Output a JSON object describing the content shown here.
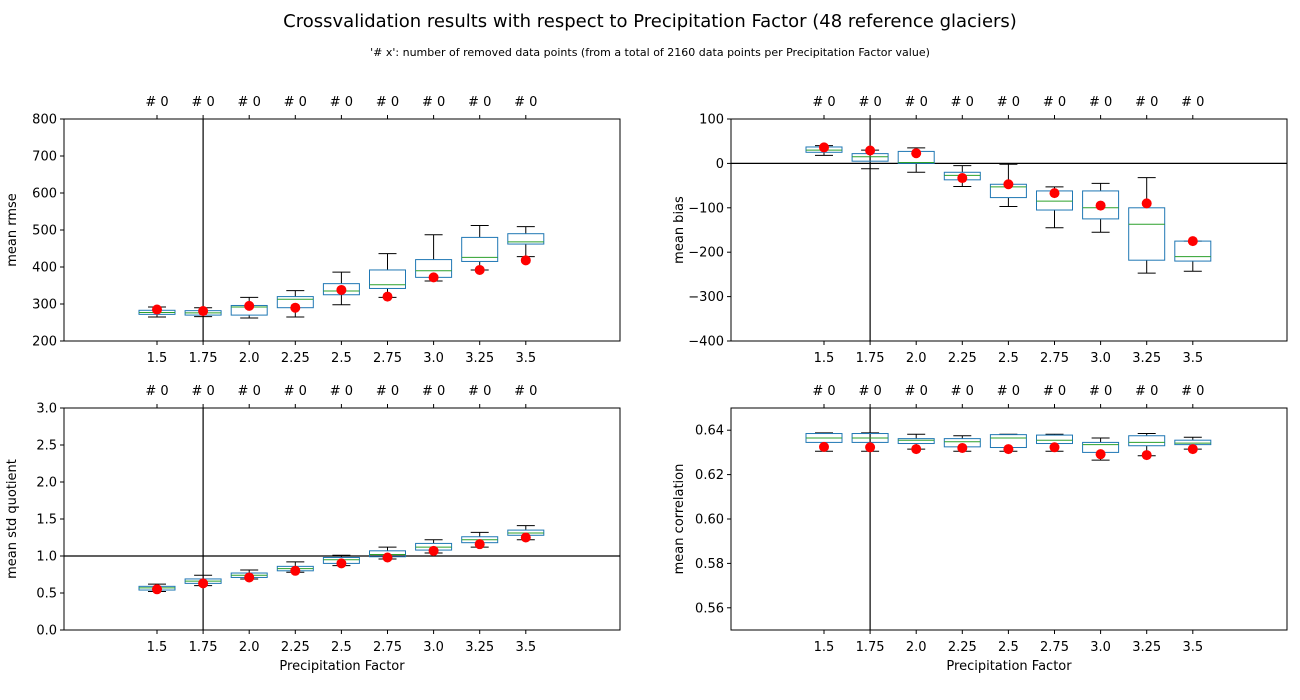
{
  "title": "Crossvalidation results with respect to Precipitation Factor  (48 reference glaciers)",
  "subtitle": "'# x': number of removed data points (from a total of 2160 data points per Precipitation Factor value)",
  "colors": {
    "box": "#1f77b4",
    "median": "#2ca02c",
    "mean_marker": "#ff0000",
    "reference_line": "#000000"
  },
  "chart_data": [
    {
      "type": "box",
      "xlabel": "",
      "ylabel": "mean rmse",
      "ylim": [
        200,
        800
      ],
      "yticks": [
        "200",
        "300",
        "400",
        "500",
        "600",
        "700",
        "800"
      ],
      "categories": [
        "1.5",
        "1.75",
        "2.0",
        "2.25",
        "2.5",
        "2.75",
        "3.0",
        "3.25",
        "3.5"
      ],
      "top_labels": [
        "# 0",
        "# 0",
        "# 0",
        "# 0",
        "# 0",
        "# 0",
        "# 0",
        "# 0",
        "# 0"
      ],
      "reference_x": "1.75",
      "reference_y": null,
      "boxes": [
        {
          "whislo": 265,
          "q1": 272,
          "med": 277,
          "q3": 283,
          "whishi": 292,
          "mean": 285
        },
        {
          "whislo": 266,
          "q1": 270,
          "med": 276,
          "q3": 282,
          "whishi": 290,
          "mean": 281
        },
        {
          "whislo": 262,
          "q1": 270,
          "med": 292,
          "q3": 296,
          "whishi": 318,
          "mean": 295
        },
        {
          "whislo": 265,
          "q1": 290,
          "med": 313,
          "q3": 320,
          "whishi": 336,
          "mean": 290
        },
        {
          "whislo": 298,
          "q1": 325,
          "med": 335,
          "q3": 355,
          "whishi": 386,
          "mean": 338
        },
        {
          "whislo": 318,
          "q1": 342,
          "med": 352,
          "q3": 392,
          "whishi": 436,
          "mean": 320
        },
        {
          "whislo": 362,
          "q1": 372,
          "med": 390,
          "q3": 420,
          "whishi": 487,
          "mean": 372
        },
        {
          "whislo": 392,
          "q1": 415,
          "med": 426,
          "q3": 480,
          "whishi": 512,
          "mean": 392
        },
        {
          "whislo": 428,
          "q1": 462,
          "med": 468,
          "q3": 490,
          "whishi": 509,
          "mean": 418
        }
      ]
    },
    {
      "type": "box",
      "xlabel": "",
      "ylabel": "mean bias",
      "ylim": [
        -400,
        100
      ],
      "yticks": [
        "−400",
        "−300",
        "−200",
        "−100",
        "0",
        "100"
      ],
      "categories": [
        "1.5",
        "1.75",
        "2.0",
        "2.25",
        "2.5",
        "2.75",
        "3.0",
        "3.25",
        "3.5"
      ],
      "top_labels": [
        "# 0",
        "# 0",
        "# 0",
        "# 0",
        "# 0",
        "# 0",
        "# 0",
        "# 0",
        "# 0"
      ],
      "reference_x": "1.75",
      "reference_y": 0,
      "boxes": [
        {
          "whislo": 18,
          "q1": 25,
          "med": 30,
          "q3": 37,
          "whishi": 40,
          "mean": 36
        },
        {
          "whislo": -12,
          "q1": 5,
          "med": 15,
          "q3": 22,
          "whishi": 30,
          "mean": 29
        },
        {
          "whislo": -20,
          "q1": 0,
          "med": 2,
          "q3": 27,
          "whishi": 35,
          "mean": 23
        },
        {
          "whislo": -52,
          "q1": -37,
          "med": -27,
          "q3": -20,
          "whishi": -5,
          "mean": -33
        },
        {
          "whislo": -97,
          "q1": -77,
          "med": -53,
          "q3": -47,
          "whishi": -2,
          "mean": -47
        },
        {
          "whislo": -145,
          "q1": -105,
          "med": -85,
          "q3": -62,
          "whishi": -53,
          "mean": -67
        },
        {
          "whislo": -155,
          "q1": -125,
          "med": -100,
          "q3": -62,
          "whishi": -45,
          "mean": -95
        },
        {
          "whislo": -247,
          "q1": -218,
          "med": -137,
          "q3": -100,
          "whishi": -32,
          "mean": -90
        },
        {
          "whislo": -243,
          "q1": -220,
          "med": -210,
          "q3": -175,
          "whishi": -175,
          "mean": -175
        }
      ]
    },
    {
      "type": "box",
      "xlabel": "Precipitation Factor",
      "ylabel": "mean std quotient",
      "ylim": [
        0.0,
        3.0
      ],
      "yticks": [
        "0.0",
        "0.5",
        "1.0",
        "1.5",
        "2.0",
        "2.5",
        "3.0"
      ],
      "categories": [
        "1.5",
        "1.75",
        "2.0",
        "2.25",
        "2.5",
        "2.75",
        "3.0",
        "3.25",
        "3.5"
      ],
      "top_labels": [
        "# 0",
        "# 0",
        "# 0",
        "# 0",
        "# 0",
        "# 0",
        "# 0",
        "# 0",
        "# 0"
      ],
      "reference_x": "1.75",
      "reference_y": 1.0,
      "boxes": [
        {
          "whislo": 0.52,
          "q1": 0.54,
          "med": 0.57,
          "q3": 0.59,
          "whishi": 0.62,
          "mean": 0.55
        },
        {
          "whislo": 0.6,
          "q1": 0.63,
          "med": 0.66,
          "q3": 0.69,
          "whishi": 0.74,
          "mean": 0.63
        },
        {
          "whislo": 0.69,
          "q1": 0.71,
          "med": 0.74,
          "q3": 0.77,
          "whishi": 0.81,
          "mean": 0.71
        },
        {
          "whislo": 0.78,
          "q1": 0.8,
          "med": 0.83,
          "q3": 0.86,
          "whishi": 0.92,
          "mean": 0.8
        },
        {
          "whislo": 0.87,
          "q1": 0.9,
          "med": 0.95,
          "q3": 0.98,
          "whishi": 1.01,
          "mean": 0.9
        },
        {
          "whislo": 0.96,
          "q1": 0.99,
          "med": 1.02,
          "q3": 1.07,
          "whishi": 1.12,
          "mean": 0.98
        },
        {
          "whislo": 1.04,
          "q1": 1.08,
          "med": 1.12,
          "q3": 1.17,
          "whishi": 1.22,
          "mean": 1.07
        },
        {
          "whislo": 1.12,
          "q1": 1.18,
          "med": 1.22,
          "q3": 1.26,
          "whishi": 1.32,
          "mean": 1.16
        },
        {
          "whislo": 1.22,
          "q1": 1.28,
          "med": 1.31,
          "q3": 1.35,
          "whishi": 1.41,
          "mean": 1.25
        }
      ]
    },
    {
      "type": "box",
      "xlabel": "Precipitation Factor",
      "ylabel": "mean correlation",
      "ylim": [
        0.55,
        0.65
      ],
      "yticks": [
        "0.56",
        "0.58",
        "0.60",
        "0.62",
        "0.64"
      ],
      "ytick_values": [
        0.56,
        0.58,
        0.6,
        0.62,
        0.64
      ],
      "categories": [
        "1.5",
        "1.75",
        "2.0",
        "2.25",
        "2.5",
        "2.75",
        "3.0",
        "3.25",
        "3.5"
      ],
      "top_labels": [
        "# 0",
        "# 0",
        "# 0",
        "# 0",
        "# 0",
        "# 0",
        "# 0",
        "# 0",
        "# 0"
      ],
      "reference_x": "1.75",
      "reference_y": null,
      "boxes": [
        {
          "whislo": 0.6305,
          "q1": 0.6345,
          "med": 0.6365,
          "q3": 0.6385,
          "whishi": 0.6388,
          "mean": 0.6325
        },
        {
          "whislo": 0.6305,
          "q1": 0.6345,
          "med": 0.6365,
          "q3": 0.6385,
          "whishi": 0.6388,
          "mean": 0.6323
        },
        {
          "whislo": 0.6315,
          "q1": 0.634,
          "med": 0.6355,
          "q3": 0.6362,
          "whishi": 0.6382,
          "mean": 0.6315
        },
        {
          "whislo": 0.6305,
          "q1": 0.6325,
          "med": 0.6348,
          "q3": 0.6362,
          "whishi": 0.6375,
          "mean": 0.632
        },
        {
          "whislo": 0.6305,
          "q1": 0.6322,
          "med": 0.6365,
          "q3": 0.638,
          "whishi": 0.6382,
          "mean": 0.6315
        },
        {
          "whislo": 0.6305,
          "q1": 0.634,
          "med": 0.6355,
          "q3": 0.6378,
          "whishi": 0.6382,
          "mean": 0.6323
        },
        {
          "whislo": 0.6265,
          "q1": 0.63,
          "med": 0.6335,
          "q3": 0.6345,
          "whishi": 0.6365,
          "mean": 0.6292
        },
        {
          "whislo": 0.6285,
          "q1": 0.633,
          "med": 0.6345,
          "q3": 0.6375,
          "whishi": 0.6385,
          "mean": 0.6288
        },
        {
          "whislo": 0.6315,
          "q1": 0.6335,
          "med": 0.6342,
          "q3": 0.6355,
          "whishi": 0.6368,
          "mean": 0.6315
        }
      ]
    }
  ]
}
